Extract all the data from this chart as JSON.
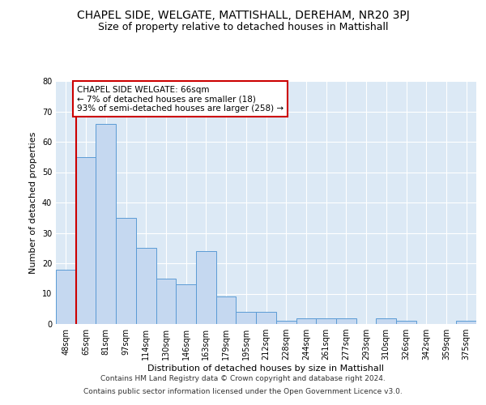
{
  "title": "CHAPEL SIDE, WELGATE, MATTISHALL, DEREHAM, NR20 3PJ",
  "subtitle": "Size of property relative to detached houses in Mattishall",
  "xlabel": "Distribution of detached houses by size in Mattishall",
  "ylabel": "Number of detached properties",
  "categories": [
    "48sqm",
    "65sqm",
    "81sqm",
    "97sqm",
    "114sqm",
    "130sqm",
    "146sqm",
    "163sqm",
    "179sqm",
    "195sqm",
    "212sqm",
    "228sqm",
    "244sqm",
    "261sqm",
    "277sqm",
    "293sqm",
    "310sqm",
    "326sqm",
    "342sqm",
    "359sqm",
    "375sqm"
  ],
  "values": [
    18,
    55,
    66,
    35,
    25,
    15,
    13,
    24,
    9,
    4,
    4,
    1,
    2,
    2,
    2,
    0,
    2,
    1,
    0,
    0,
    1
  ],
  "bar_color": "#c5d8f0",
  "bar_edge_color": "#5b9bd5",
  "highlight_color": "#cc0000",
  "annotation_text": "CHAPEL SIDE WELGATE: 66sqm\n← 7% of detached houses are smaller (18)\n93% of semi-detached houses are larger (258) →",
  "annotation_box_color": "#ffffff",
  "annotation_box_edge_color": "#cc0000",
  "ylim": [
    0,
    80
  ],
  "yticks": [
    0,
    10,
    20,
    30,
    40,
    50,
    60,
    70,
    80
  ],
  "background_color": "#dce9f5",
  "footer_line1": "Contains HM Land Registry data © Crown copyright and database right 2024.",
  "footer_line2": "Contains public sector information licensed under the Open Government Licence v3.0.",
  "title_fontsize": 10,
  "subtitle_fontsize": 9,
  "axis_label_fontsize": 8,
  "tick_fontsize": 7,
  "annotation_fontsize": 7.5,
  "footer_fontsize": 6.5
}
